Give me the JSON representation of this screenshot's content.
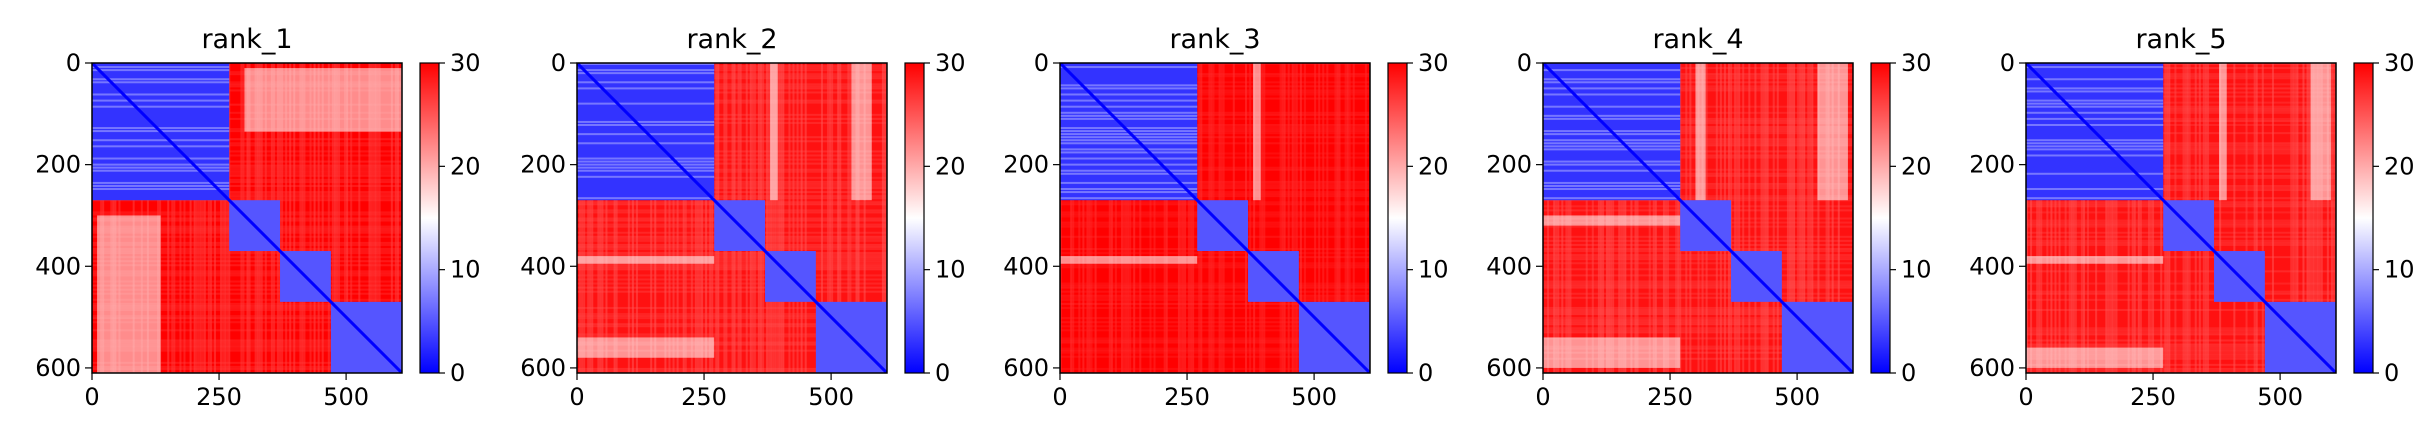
{
  "chart_data": [
    {
      "type": "heatmap",
      "title": "rank_1",
      "x_ticks": [
        0,
        250,
        500
      ],
      "y_ticks": [
        0,
        200,
        400,
        600
      ],
      "xlim": [
        0,
        610
      ],
      "ylim": [
        610,
        0
      ],
      "colorbar": {
        "ticks": [
          0,
          10,
          20,
          30
        ],
        "range": [
          0,
          30
        ],
        "colors": [
          "#0000ff",
          "#ffffff",
          "#ff0000"
        ]
      },
      "blocks": [
        0,
        270,
        370,
        470,
        610
      ],
      "bands": [
        {
          "row": [
            10,
            135
          ],
          "col": [
            300,
            610
          ]
        }
      ],
      "off_block_level": 26
    },
    {
      "type": "heatmap",
      "title": "rank_2",
      "x_ticks": [
        0,
        250,
        500
      ],
      "y_ticks": [
        0,
        200,
        400,
        600
      ],
      "xlim": [
        0,
        610
      ],
      "ylim": [
        610,
        0
      ],
      "colorbar": {
        "ticks": [
          0,
          10,
          20,
          30
        ],
        "range": [
          0,
          30
        ],
        "colors": [
          "#0000ff",
          "#ffffff",
          "#ff0000"
        ]
      },
      "blocks": [
        0,
        270,
        370,
        470,
        610
      ],
      "bands": [
        {
          "row": [
            0,
            270
          ],
          "col": [
            380,
            395
          ]
        },
        {
          "row": [
            0,
            270
          ],
          "col": [
            540,
            580
          ]
        }
      ],
      "off_block_level": 25
    },
    {
      "type": "heatmap",
      "title": "rank_3",
      "x_ticks": [
        0,
        250,
        500
      ],
      "y_ticks": [
        0,
        200,
        400,
        600
      ],
      "xlim": [
        0,
        610
      ],
      "ylim": [
        610,
        0
      ],
      "colorbar": {
        "ticks": [
          0,
          10,
          20,
          30
        ],
        "range": [
          0,
          30
        ],
        "colors": [
          "#0000ff",
          "#ffffff",
          "#ff0000"
        ]
      },
      "blocks": [
        0,
        270,
        370,
        470,
        610
      ],
      "bands": [
        {
          "row": [
            0,
            270
          ],
          "col": [
            380,
            395
          ]
        }
      ],
      "off_block_level": 27
    },
    {
      "type": "heatmap",
      "title": "rank_4",
      "x_ticks": [
        0,
        250,
        500
      ],
      "y_ticks": [
        0,
        200,
        400,
        600
      ],
      "xlim": [
        0,
        610
      ],
      "ylim": [
        610,
        0
      ],
      "colorbar": {
        "ticks": [
          0,
          10,
          20,
          30
        ],
        "range": [
          0,
          30
        ],
        "colors": [
          "#0000ff",
          "#ffffff",
          "#ff0000"
        ]
      },
      "blocks": [
        0,
        270,
        370,
        470,
        610
      ],
      "bands": [
        {
          "row": [
            0,
            270
          ],
          "col": [
            300,
            320
          ]
        },
        {
          "row": [
            0,
            270
          ],
          "col": [
            540,
            600
          ]
        }
      ],
      "off_block_level": 25
    },
    {
      "type": "heatmap",
      "title": "rank_5",
      "x_ticks": [
        0,
        250,
        500
      ],
      "y_ticks": [
        0,
        200,
        400,
        600
      ],
      "xlim": [
        0,
        610
      ],
      "ylim": [
        610,
        0
      ],
      "colorbar": {
        "ticks": [
          0,
          10,
          20,
          30
        ],
        "range": [
          0,
          30
        ],
        "colors": [
          "#0000ff",
          "#ffffff",
          "#ff0000"
        ]
      },
      "blocks": [
        0,
        270,
        370,
        470,
        610
      ],
      "bands": [
        {
          "row": [
            0,
            270
          ],
          "col": [
            380,
            395
          ]
        },
        {
          "row": [
            0,
            270
          ],
          "col": [
            560,
            600
          ]
        }
      ],
      "off_block_level": 25
    }
  ]
}
